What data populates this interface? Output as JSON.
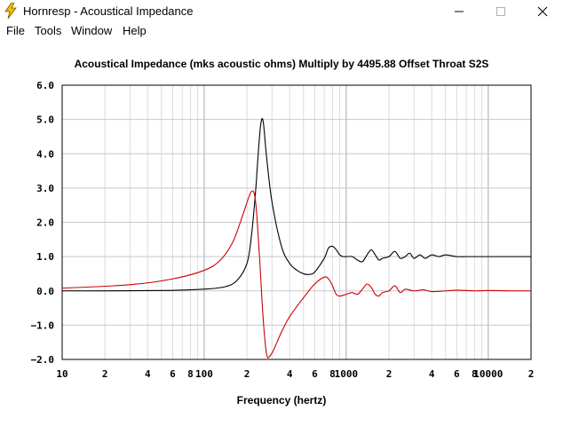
{
  "window": {
    "title": "Hornresp - Acoustical Impedance",
    "icon": "lightning-icon",
    "controls": [
      "minimize-icon",
      "maximize-icon",
      "close-icon"
    ]
  },
  "menu": {
    "items": [
      {
        "label": "File"
      },
      {
        "label": "Tools"
      },
      {
        "label": "Window"
      },
      {
        "label": "Help"
      }
    ]
  },
  "chart_title": "Acoustical Impedance (mks acoustic ohms)   Multiply by 4495.88   Offset Throat S2S",
  "colors": {
    "series_black": "#000000",
    "series_red": "#cc0000",
    "grid": "#c8c8c8",
    "axis": "#000000"
  },
  "chart_data": {
    "type": "line",
    "title": "Acoustical Impedance (mks acoustic ohms)   Multiply by 4495.88   Offset Throat S2S",
    "xlabel": "Frequency (hertz)",
    "ylabel": "",
    "x_scale": "log",
    "xlim": [
      10,
      20000
    ],
    "ylim": [
      -2.0,
      6.0
    ],
    "grid": true,
    "y_ticks": [
      "6.0",
      "5.0",
      "4.0",
      "3.0",
      "2.0",
      "1.0",
      "0.0",
      "−1.0",
      "−2.0"
    ],
    "x_ticks": [
      "10",
      "2",
      "4",
      "6",
      "8",
      "100",
      "2",
      "4",
      "6",
      "8",
      "1000",
      "2",
      "4",
      "6",
      "8",
      "10000",
      "2"
    ],
    "series": [
      {
        "color": "#000000",
        "x": [
          10,
          50,
          100,
          140,
          170,
          200,
          215,
          230,
          240,
          250,
          260,
          275,
          300,
          350,
          400,
          450,
          500,
          550,
          600,
          700,
          750,
          800,
          850,
          900,
          950,
          1000,
          1100,
          1200,
          1300,
          1400,
          1500,
          1600,
          1700,
          1800,
          2000,
          2200,
          2400,
          2600,
          2800,
          3000,
          3300,
          3600,
          4000,
          4500,
          5000,
          6000,
          7000,
          8000,
          10000,
          12000,
          15000,
          20000
        ],
        "y": [
          0.0,
          0.01,
          0.05,
          0.12,
          0.3,
          0.8,
          1.6,
          2.9,
          4.0,
          4.85,
          4.95,
          3.9,
          2.6,
          1.3,
          0.8,
          0.6,
          0.5,
          0.48,
          0.55,
          0.95,
          1.25,
          1.3,
          1.2,
          1.05,
          1.0,
          1.0,
          1.0,
          0.9,
          0.85,
          1.05,
          1.2,
          1.05,
          0.9,
          0.95,
          1.0,
          1.15,
          0.95,
          1.0,
          1.1,
          0.95,
          1.05,
          0.95,
          1.05,
          1.0,
          1.05,
          1.0,
          1.0,
          1.0,
          1.0,
          1.0,
          1.0,
          1.0
        ]
      },
      {
        "color": "#cc0000",
        "x": [
          10,
          30,
          60,
          100,
          130,
          160,
          190,
          215,
          230,
          245,
          260,
          275,
          290,
          310,
          350,
          400,
          500,
          600,
          700,
          750,
          800,
          850,
          900,
          1000,
          1100,
          1200,
          1300,
          1400,
          1500,
          1600,
          1700,
          1800,
          2000,
          2200,
          2400,
          2600,
          3000,
          3500,
          4000,
          5000,
          6000,
          8000,
          10000,
          15000,
          20000
        ],
        "y": [
          0.08,
          0.18,
          0.35,
          0.6,
          0.9,
          1.45,
          2.3,
          2.9,
          2.6,
          1.0,
          -0.8,
          -1.85,
          -1.9,
          -1.7,
          -1.2,
          -0.75,
          -0.2,
          0.2,
          0.4,
          0.35,
          0.15,
          -0.1,
          -0.15,
          -0.1,
          -0.05,
          -0.1,
          0.05,
          0.2,
          0.1,
          -0.1,
          -0.15,
          -0.05,
          0.0,
          0.15,
          -0.05,
          0.05,
          0.0,
          0.03,
          -0.02,
          0.0,
          0.02,
          0.0,
          0.01,
          0.0,
          0.0
        ]
      }
    ]
  }
}
